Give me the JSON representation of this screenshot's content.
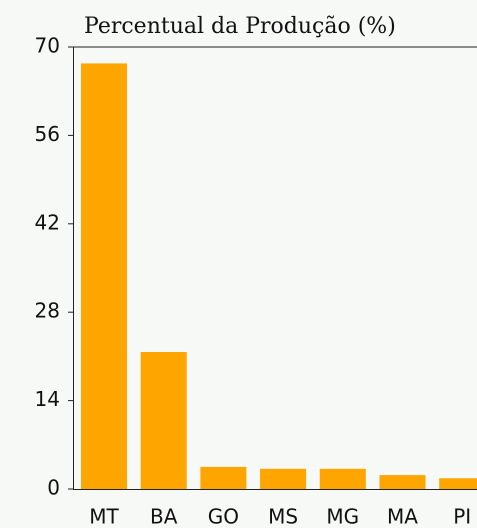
{
  "chart_data": {
    "type": "bar",
    "title": "Percentual da Produção (%)",
    "categories": [
      "MT",
      "BA",
      "GO",
      "MS",
      "MG",
      "MA",
      "PI"
    ],
    "values": [
      67.4,
      21.7,
      3.5,
      3.2,
      3.2,
      2.2,
      1.7
    ],
    "color": "#ffa500",
    "ylim": [
      0,
      70
    ],
    "yticks": [
      0,
      14,
      28,
      42,
      56,
      70
    ],
    "grid": false
  }
}
